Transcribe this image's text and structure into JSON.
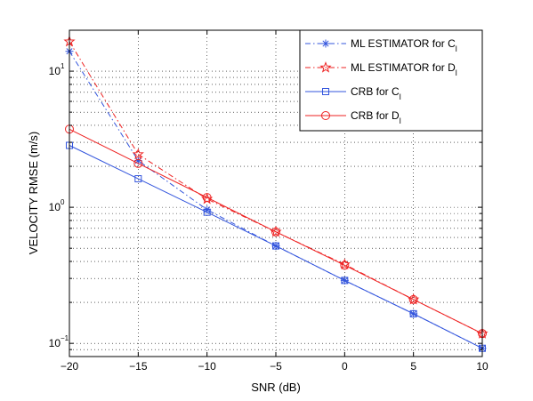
{
  "chart_data": {
    "type": "line",
    "title": "",
    "xlabel": "SNR (dB)",
    "ylabel": "VELOCITY RMSE (m/s)",
    "x_scale": "linear",
    "y_scale": "log",
    "xlim": [
      -20,
      10
    ],
    "ylim": [
      0.08,
      20
    ],
    "grid": true,
    "legend_position": "top-right",
    "x_ticks": [
      {
        "value": -20,
        "label": "−20"
      },
      {
        "value": -15,
        "label": "−15"
      },
      {
        "value": -10,
        "label": "−10"
      },
      {
        "value": -5,
        "label": "−5"
      },
      {
        "value": 0,
        "label": "0"
      },
      {
        "value": 5,
        "label": "5"
      },
      {
        "value": 10,
        "label": "10"
      }
    ],
    "y_ticks": [
      {
        "value": 0.1,
        "base": "10",
        "exp": "−1"
      },
      {
        "value": 1,
        "base": "10",
        "exp": "0"
      },
      {
        "value": 10,
        "base": "10",
        "exp": "1"
      }
    ],
    "x": [
      -20,
      -15,
      -10,
      -5,
      0,
      5,
      10
    ],
    "series": [
      {
        "legend_prefix": "ML ESTIMATOR for C",
        "legend_sub": "l",
        "color": "#3355dd",
        "line_style": "dashdot",
        "marker": "asterisk",
        "values": [
          14.0,
          2.2,
          0.96,
          0.52,
          0.29,
          0.165,
          0.092
        ]
      },
      {
        "legend_prefix": "ML ESTIMATOR for D",
        "legend_sub": "l",
        "color": "#ee2222",
        "line_style": "dashdot",
        "marker": "star",
        "values": [
          16.5,
          2.45,
          1.15,
          0.66,
          0.38,
          0.21,
          0.118
        ]
      },
      {
        "legend_prefix": "CRB for C",
        "legend_sub": "l",
        "color": "#3355dd",
        "line_style": "solid",
        "marker": "square",
        "values": [
          2.85,
          1.62,
          0.92,
          0.52,
          0.29,
          0.165,
          0.092
        ]
      },
      {
        "legend_prefix": "CRB for D",
        "legend_sub": "l",
        "color": "#ee2222",
        "line_style": "solid",
        "marker": "circle",
        "values": [
          3.75,
          2.1,
          1.18,
          0.66,
          0.375,
          0.21,
          0.118
        ]
      }
    ]
  }
}
